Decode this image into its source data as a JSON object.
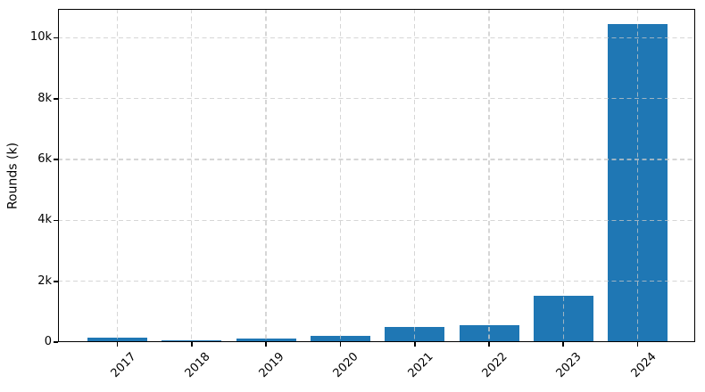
{
  "chart_data": {
    "type": "bar",
    "title": "",
    "xlabel": "",
    "ylabel": "Rounds (k)",
    "categories": [
      "2017",
      "2018",
      "2019",
      "2020",
      "2021",
      "2022",
      "2023",
      "2024"
    ],
    "series": [
      {
        "name": "Rounds",
        "values": [
          160,
          50,
          130,
          200,
          500,
          570,
          1520,
          10450
        ]
      }
    ],
    "ylim": [
      0,
      10950
    ],
    "yticks": {
      "values": [
        0,
        2000,
        4000,
        6000,
        8000,
        10000
      ],
      "labels": [
        "0",
        "2k",
        "4k",
        "6k",
        "8k",
        "10k"
      ]
    },
    "x_tick_rotation_deg": 45,
    "legend": "none",
    "grid": "dashed gridlines on both axes, drawn above bars",
    "colors": {
      "bar": "#1f77b4",
      "grid": "#c8c8c8",
      "axis": "#000000",
      "background": "#ffffff",
      "text": "#000000"
    }
  }
}
